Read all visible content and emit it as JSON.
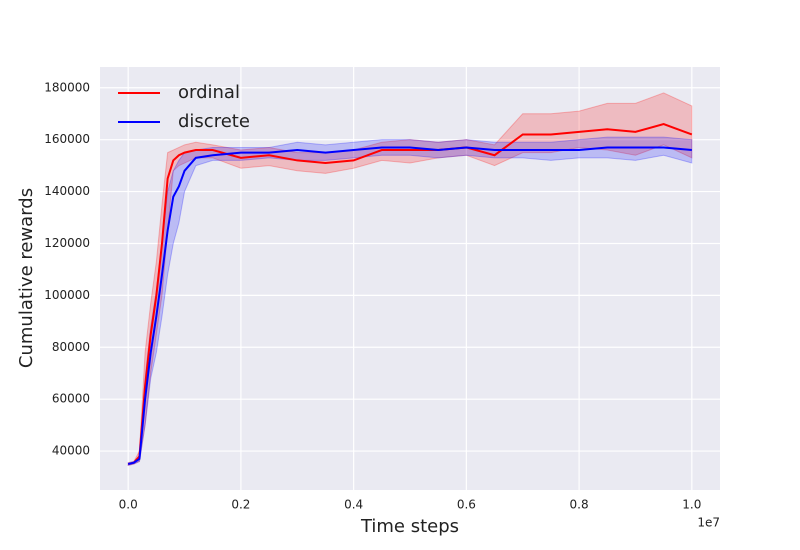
{
  "chart_data": {
    "type": "line",
    "x_label": "Time steps",
    "y_label": "Cumulative rewards",
    "x_offset_label": "1e7",
    "x": [
      0,
      0.01,
      0.02,
      0.03,
      0.04,
      0.05,
      0.06,
      0.07,
      0.08,
      0.09,
      0.1,
      0.12,
      0.15,
      0.2,
      0.25,
      0.3,
      0.35,
      0.4,
      0.45,
      0.5,
      0.55,
      0.6,
      0.65,
      0.7,
      0.75,
      0.8,
      0.85,
      0.9,
      0.95,
      1.0
    ],
    "series": [
      {
        "name": "ordinal",
        "color": "#ff0000",
        "values": [
          35000,
          35500,
          38000,
          65000,
          85000,
          100000,
          120000,
          145000,
          152000,
          154000,
          155000,
          156000,
          156000,
          153000,
          154000,
          152000,
          151000,
          152000,
          156000,
          156000,
          156000,
          157000,
          154000,
          162000,
          162000,
          163000,
          164000,
          163000,
          166000,
          162000
        ],
        "lower": [
          34500,
          35000,
          36000,
          50000,
          70000,
          85000,
          100000,
          125000,
          148000,
          150000,
          151000,
          153000,
          153000,
          149000,
          150000,
          148000,
          147000,
          149000,
          152000,
          151000,
          153000,
          154000,
          150000,
          155000,
          155000,
          157000,
          156000,
          154000,
          158000,
          153000
        ],
        "upper": [
          35500,
          36000,
          40000,
          78000,
          97000,
          113000,
          135000,
          155000,
          156000,
          157000,
          158000,
          159000,
          158000,
          156000,
          157000,
          155000,
          155000,
          156000,
          159000,
          160000,
          159000,
          160000,
          158000,
          170000,
          170000,
          171000,
          174000,
          174000,
          178000,
          173000
        ]
      },
      {
        "name": "discrete",
        "color": "#0000ff",
        "values": [
          35000,
          35500,
          37000,
          60000,
          78000,
          92000,
          108000,
          125000,
          138000,
          142000,
          148000,
          153000,
          154000,
          155000,
          155000,
          156000,
          155000,
          156000,
          157000,
          157000,
          156000,
          157000,
          156000,
          156000,
          156000,
          156000,
          157000,
          157000,
          157000,
          156000
        ],
        "lower": [
          34500,
          35000,
          36000,
          50000,
          68000,
          78000,
          92000,
          108000,
          120000,
          128000,
          140000,
          150000,
          152000,
          152000,
          153000,
          152000,
          152000,
          153000,
          154000,
          154000,
          153000,
          154000,
          153000,
          153000,
          152000,
          153000,
          153000,
          152000,
          154000,
          151000
        ],
        "upper": [
          35500,
          36000,
          38000,
          68000,
          88000,
          102000,
          120000,
          140000,
          148000,
          152000,
          155000,
          156000,
          157000,
          157000,
          157000,
          159000,
          158000,
          159000,
          160000,
          160000,
          159000,
          160000,
          159000,
          159000,
          159000,
          160000,
          161000,
          161000,
          161000,
          160000
        ]
      }
    ],
    "xlim": [
      -0.05,
      1.05
    ],
    "ylim": [
      25000,
      188000
    ],
    "xticks": [
      {
        "value": 0,
        "label": "0.0"
      },
      {
        "value": 0.2,
        "label": "0.2"
      },
      {
        "value": 0.4,
        "label": "0.4"
      },
      {
        "value": 0.6,
        "label": "0.6"
      },
      {
        "value": 0.8,
        "label": "0.8"
      },
      {
        "value": 1.0,
        "label": "1.0"
      }
    ],
    "yticks": [
      40000,
      60000,
      80000,
      100000,
      120000,
      140000,
      160000,
      180000
    ],
    "grid": true,
    "legend": "upper left"
  }
}
